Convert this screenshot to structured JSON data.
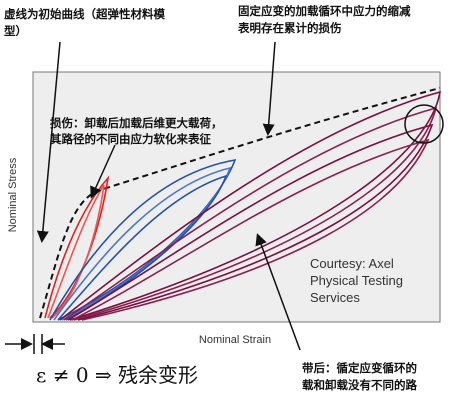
{
  "annotations": {
    "initial_curve": [
      "虚线为初始曲线（超弹性材料模",
      "型）"
    ],
    "stress_reduction": [
      "固定应变的加载循环中应力的缩减",
      "表明存在累计的损伤"
    ],
    "damage": [
      "损伤：卸载后加载后维更大载荷，",
      "其路径的不同由应力软化来表征"
    ],
    "hysteresis": [
      "带后：循定应变循环的",
      "载和卸载没有不同的路"
    ]
  },
  "axes": {
    "y_label": "Nominal Stress",
    "x_label": "Nominal Strain"
  },
  "courtesy": [
    "Courtesy: Axel",
    "Physical Testing",
    "Services"
  ],
  "formula": "ε ≠ 0 ⇒ 残余变形"
}
